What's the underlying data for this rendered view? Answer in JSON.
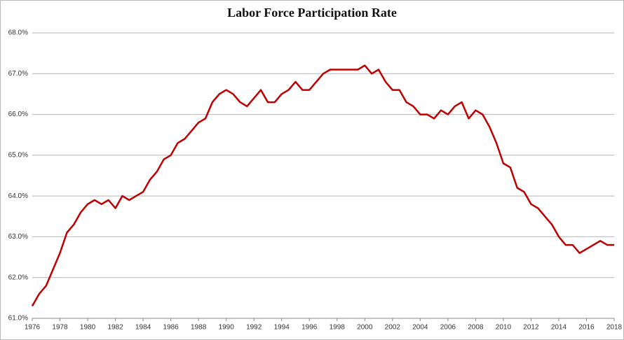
{
  "chart_data": {
    "type": "line",
    "title": "Labor Force Participation Rate",
    "x": [
      1976.0,
      1976.5,
      1977.0,
      1977.5,
      1978.0,
      1978.5,
      1979.0,
      1979.5,
      1980.0,
      1980.5,
      1981.0,
      1981.5,
      1982.0,
      1982.5,
      1983.0,
      1983.5,
      1984.0,
      1984.5,
      1985.0,
      1985.5,
      1986.0,
      1986.5,
      1987.0,
      1987.5,
      1988.0,
      1988.5,
      1989.0,
      1989.5,
      1990.0,
      1990.5,
      1991.0,
      1991.5,
      1992.0,
      1992.5,
      1993.0,
      1993.5,
      1994.0,
      1994.5,
      1995.0,
      1995.5,
      1996.0,
      1996.5,
      1997.0,
      1997.5,
      1998.0,
      1998.5,
      1999.0,
      1999.5,
      2000.0,
      2000.5,
      2001.0,
      2001.5,
      2002.0,
      2002.5,
      2003.0,
      2003.5,
      2004.0,
      2004.5,
      2005.0,
      2005.5,
      2006.0,
      2006.5,
      2007.0,
      2007.5,
      2008.0,
      2008.5,
      2009.0,
      2009.5,
      2010.0,
      2010.5,
      2011.0,
      2011.5,
      2012.0,
      2012.5,
      2013.0,
      2013.5,
      2014.0,
      2014.5,
      2015.0,
      2015.5,
      2016.0,
      2016.5,
      2017.0,
      2017.5,
      2018.0
    ],
    "series": [
      {
        "name": "Labor Force Participation Rate",
        "color": "#c00000",
        "values": [
          61.3,
          61.6,
          61.8,
          62.2,
          62.6,
          63.1,
          63.3,
          63.6,
          63.8,
          63.9,
          63.8,
          63.9,
          63.7,
          64.0,
          63.9,
          64.0,
          64.1,
          64.4,
          64.6,
          64.9,
          65.0,
          65.3,
          65.4,
          65.6,
          65.8,
          65.9,
          66.3,
          66.5,
          66.6,
          66.5,
          66.3,
          66.2,
          66.4,
          66.6,
          66.3,
          66.3,
          66.5,
          66.6,
          66.8,
          66.6,
          66.6,
          66.8,
          67.0,
          67.1,
          67.1,
          67.1,
          67.1,
          67.1,
          67.2,
          67.0,
          67.1,
          66.8,
          66.6,
          66.6,
          66.3,
          66.2,
          66.0,
          66.0,
          65.9,
          66.1,
          66.0,
          66.2,
          66.3,
          65.9,
          66.1,
          66.0,
          65.7,
          65.3,
          64.8,
          64.7,
          64.2,
          64.1,
          63.8,
          63.7,
          63.5,
          63.3,
          63.0,
          62.8,
          62.8,
          62.6,
          62.7,
          62.8,
          62.9,
          62.8,
          62.8
        ]
      }
    ],
    "xlim": [
      1976,
      2018
    ],
    "xticks": [
      1976,
      1978,
      1980,
      1982,
      1984,
      1986,
      1988,
      1990,
      1992,
      1994,
      1996,
      1998,
      2000,
      2002,
      2004,
      2006,
      2008,
      2010,
      2012,
      2014,
      2016,
      2018
    ],
    "ylim": [
      61,
      68
    ],
    "yticks": [
      {
        "value": 61,
        "label": "61.0%"
      },
      {
        "value": 62,
        "label": "62.0%"
      },
      {
        "value": 63,
        "label": "63.0%"
      },
      {
        "value": 64,
        "label": "64.0%"
      },
      {
        "value": 65,
        "label": "65.0%"
      },
      {
        "value": 66,
        "label": "66.0%"
      },
      {
        "value": 67,
        "label": "67.0%"
      },
      {
        "value": 68,
        "label": "68.0%"
      }
    ],
    "grid": true
  }
}
